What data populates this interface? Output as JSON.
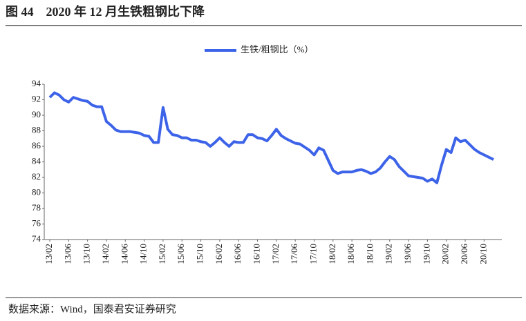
{
  "chart_data": {
    "type": "line",
    "title": "图 44    2020 年 12 月生铁粗钢比下降",
    "source": "数据来源：Wind，国泰君安证券研究",
    "categories": [
      "13/02",
      null,
      null,
      null,
      "13/06",
      null,
      null,
      null,
      "13/10",
      null,
      null,
      null,
      "14/02",
      null,
      null,
      null,
      "14/06",
      null,
      null,
      null,
      "14/10",
      null,
      null,
      null,
      "15/02",
      null,
      null,
      null,
      "15/06",
      null,
      null,
      null,
      "15/10",
      null,
      null,
      null,
      "16/02",
      null,
      null,
      null,
      "16/06",
      null,
      null,
      null,
      "16/10",
      null,
      null,
      null,
      "17/02",
      null,
      null,
      null,
      "17/06",
      null,
      null,
      null,
      "17/10",
      null,
      null,
      null,
      "18/02",
      null,
      null,
      null,
      "18/06",
      null,
      null,
      null,
      "18/10",
      null,
      null,
      null,
      "19/02",
      null,
      null,
      null,
      "19/06",
      null,
      null,
      null,
      "19/10",
      null,
      null,
      null,
      "20/02",
      null,
      null,
      null,
      "20/06",
      null,
      null,
      null,
      "20/10",
      null,
      null
    ],
    "series": [
      {
        "name": "生铁/粗钢比（%）",
        "color": "#3d63e8",
        "values": [
          92.3,
          92.9,
          92.6,
          92.0,
          91.7,
          92.3,
          92.1,
          91.9,
          91.8,
          91.3,
          91.1,
          91.1,
          89.2,
          88.7,
          88.1,
          87.9,
          87.9,
          87.9,
          87.8,
          87.7,
          87.4,
          87.3,
          86.5,
          86.5,
          91.0,
          88.2,
          87.5,
          87.4,
          87.1,
          87.1,
          86.8,
          86.8,
          86.6,
          86.5,
          86.0,
          86.5,
          87.1,
          86.5,
          86.0,
          86.6,
          86.5,
          86.5,
          87.5,
          87.5,
          87.1,
          87.0,
          86.7,
          87.4,
          88.2,
          87.4,
          87.0,
          86.7,
          86.4,
          86.3,
          85.9,
          85.5,
          84.9,
          85.8,
          85.5,
          84.2,
          82.9,
          82.5,
          82.7,
          82.7,
          82.7,
          82.9,
          83.0,
          82.8,
          82.5,
          82.7,
          83.2,
          84.0,
          84.7,
          84.3,
          83.4,
          82.8,
          82.2,
          82.1,
          82.0,
          81.9,
          81.5,
          81.8,
          81.3,
          83.6,
          85.6,
          85.2,
          87.1,
          86.6,
          86.8,
          86.2,
          85.6,
          85.2,
          84.9,
          84.6,
          84.3
        ]
      }
    ],
    "ylim": [
      74,
      94
    ],
    "yticks": [
      74,
      76,
      78,
      80,
      82,
      84,
      86,
      88,
      90,
      92,
      94
    ],
    "grid": false,
    "legend": "top"
  }
}
